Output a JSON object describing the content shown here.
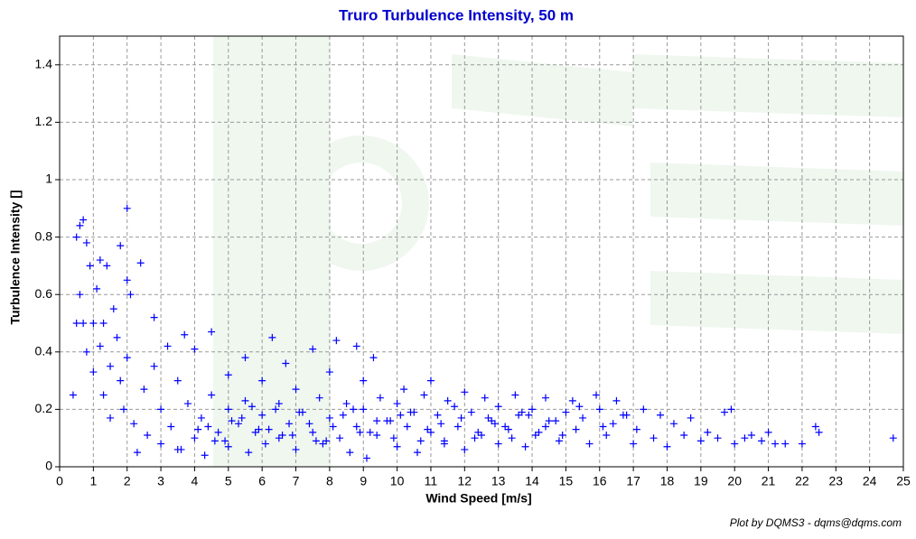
{
  "chart_data": {
    "type": "scatter",
    "title": "Truro Turbulence Intensity, 50 m",
    "x_label": "Wind Speed [m/s]",
    "y_label": "Turbulence Intensity []",
    "credit": "Plot by DQMS3 - dqms@dqms.com",
    "xlim": [
      0,
      25
    ],
    "ylim": [
      0,
      1.5
    ],
    "xticks": [
      0,
      1,
      2,
      3,
      4,
      5,
      6,
      7,
      8,
      9,
      10,
      11,
      12,
      13,
      14,
      15,
      16,
      17,
      18,
      19,
      20,
      21,
      22,
      23,
      24,
      25
    ],
    "yticks": [
      0,
      0.2,
      0.4,
      0.6,
      0.8,
      1,
      1.2,
      1.4
    ],
    "grid": true,
    "color": "#0000ff",
    "x": [
      0.4,
      0.5,
      0.5,
      0.6,
      0.7,
      0.6,
      0.7,
      0.8,
      0.8,
      0.9,
      1.0,
      1.0,
      1.1,
      1.2,
      1.2,
      1.3,
      1.3,
      1.4,
      1.5,
      1.5,
      1.6,
      1.7,
      1.8,
      1.8,
      1.9,
      2.0,
      2.0,
      2.0,
      2.1,
      2.2,
      2.3,
      2.4,
      2.5,
      2.6,
      2.8,
      2.8,
      3.0,
      3.0,
      3.2,
      3.3,
      3.5,
      3.5,
      3.7,
      3.8,
      4.0,
      4.0,
      4.2,
      4.3,
      4.5,
      4.5,
      4.7,
      5.0,
      5.0,
      5.0,
      5.3,
      5.5,
      5.5,
      5.6,
      5.8,
      6.0,
      6.0,
      6.1,
      6.3,
      6.5,
      6.5,
      6.7,
      6.8,
      7.0,
      7.0,
      7.2,
      7.5,
      7.5,
      7.7,
      7.8,
      8.0,
      8.0,
      8.2,
      8.3,
      8.5,
      8.6,
      8.8,
      8.8,
      9.0,
      9.0,
      9.1,
      9.3,
      9.4,
      9.5,
      9.7,
      10.0,
      10.0,
      10.2,
      10.3,
      10.5,
      10.6,
      10.8,
      11.0,
      11.0,
      11.2,
      11.4,
      11.5,
      11.8,
      12.0,
      12.0,
      12.2,
      12.5,
      12.6,
      12.8,
      13.0,
      13.0,
      13.3,
      13.5,
      13.6,
      13.8,
      14.0,
      14.2,
      14.4,
      14.5,
      14.8,
      15.0,
      15.2,
      15.3,
      15.5,
      15.7,
      15.9,
      16.0,
      16.2,
      16.4,
      16.5,
      16.8,
      17.0,
      17.1,
      17.3,
      17.6,
      17.8,
      18.0,
      18.2,
      18.5,
      18.7,
      19.0,
      19.2,
      19.5,
      19.7,
      19.9,
      20.0,
      20.3,
      20.5,
      20.8,
      21.0,
      21.2,
      21.5,
      22.0,
      22.4,
      22.5,
      24.7,
      4.4,
      4.9,
      5.4,
      5.9,
      6.4,
      6.9,
      7.4,
      7.9,
      8.4,
      8.9,
      9.4,
      9.9,
      10.4,
      10.9,
      11.4,
      11.9,
      12.4,
      12.9,
      13.4,
      13.9,
      14.4,
      14.9,
      3.6,
      4.1,
      4.6,
      5.1,
      5.7,
      6.2,
      6.6,
      7.1,
      7.6,
      8.1,
      8.7,
      9.2,
      9.8,
      10.1,
      10.7,
      11.3,
      11.7,
      12.3,
      12.7,
      13.2,
      13.7,
      14.1,
      14.7,
      15.4,
      16.1,
      16.7
    ],
    "y": [
      0.25,
      0.5,
      0.8,
      0.84,
      0.86,
      0.6,
      0.5,
      0.78,
      0.4,
      0.7,
      0.5,
      0.33,
      0.62,
      0.72,
      0.42,
      0.5,
      0.25,
      0.7,
      0.35,
      0.17,
      0.55,
      0.45,
      0.77,
      0.3,
      0.2,
      0.9,
      0.65,
      0.38,
      0.6,
      0.15,
      0.05,
      0.71,
      0.27,
      0.11,
      0.52,
      0.35,
      0.2,
      0.08,
      0.42,
      0.14,
      0.3,
      0.06,
      0.46,
      0.22,
      0.1,
      0.41,
      0.17,
      0.04,
      0.47,
      0.25,
      0.12,
      0.32,
      0.2,
      0.07,
      0.15,
      0.38,
      0.23,
      0.05,
      0.12,
      0.3,
      0.18,
      0.08,
      0.45,
      0.22,
      0.1,
      0.36,
      0.15,
      0.06,
      0.27,
      0.19,
      0.41,
      0.12,
      0.24,
      0.08,
      0.33,
      0.17,
      0.44,
      0.1,
      0.22,
      0.05,
      0.42,
      0.14,
      0.3,
      0.2,
      0.03,
      0.38,
      0.11,
      0.24,
      0.16,
      0.22,
      0.07,
      0.27,
      0.14,
      0.19,
      0.05,
      0.25,
      0.12,
      0.3,
      0.18,
      0.08,
      0.23,
      0.14,
      0.26,
      0.06,
      0.19,
      0.11,
      0.24,
      0.16,
      0.08,
      0.21,
      0.13,
      0.25,
      0.18,
      0.07,
      0.2,
      0.12,
      0.24,
      0.16,
      0.09,
      0.19,
      0.23,
      0.13,
      0.17,
      0.08,
      0.25,
      0.2,
      0.11,
      0.15,
      0.23,
      0.18,
      0.08,
      0.13,
      0.2,
      0.1,
      0.18,
      0.07,
      0.15,
      0.11,
      0.17,
      0.09,
      0.12,
      0.1,
      0.19,
      0.2,
      0.08,
      0.1,
      0.11,
      0.09,
      0.12,
      0.08,
      0.08,
      0.08,
      0.14,
      0.12,
      0.1,
      0.14,
      0.09,
      0.17,
      0.13,
      0.2,
      0.11,
      0.15,
      0.09,
      0.18,
      0.12,
      0.16,
      0.1,
      0.19,
      0.13,
      0.09,
      0.17,
      0.12,
      0.15,
      0.1,
      0.18,
      0.14,
      0.11,
      0.06,
      0.13,
      0.09,
      0.16,
      0.21,
      0.13,
      0.11,
      0.19,
      0.09,
      0.14,
      0.2,
      0.12,
      0.16,
      0.18,
      0.09,
      0.15,
      0.21,
      0.1,
      0.17,
      0.14,
      0.19,
      0.11,
      0.16,
      0.21,
      0.14,
      0.18
    ]
  }
}
